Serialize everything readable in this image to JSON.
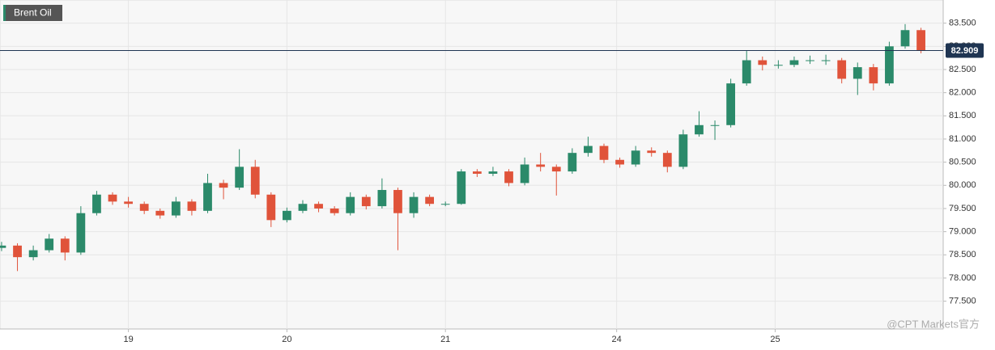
{
  "chart_data": {
    "type": "candlestick",
    "title": "Brent Oil",
    "watermark": "@CPT Markets官方",
    "x": [
      0.2,
      0.3,
      0.4,
      0.5,
      0.6,
      0.7,
      0.8,
      0.9,
      1.0,
      1.1,
      1.2,
      1.3,
      1.4,
      1.5,
      1.6,
      1.7,
      1.8,
      1.9,
      2.0,
      2.1,
      2.2,
      2.3,
      2.4,
      2.5,
      2.6,
      2.7,
      2.8,
      2.9,
      3.0,
      3.1,
      3.2,
      3.3,
      3.4,
      3.5,
      3.6,
      3.7,
      3.8,
      3.9,
      4.0,
      4.1,
      4.2,
      4.3,
      4.4,
      4.5,
      4.6,
      4.7,
      4.8,
      4.9,
      5.0,
      5.1,
      5.2,
      5.3,
      5.4,
      5.5,
      5.6,
      5.7,
      5.8,
      5.9,
      6.0
    ],
    "open": [
      78.65,
      78.7,
      78.45,
      78.6,
      78.85,
      78.55,
      79.4,
      79.8,
      79.65,
      79.6,
      79.45,
      79.35,
      79.65,
      79.45,
      80.05,
      79.95,
      80.4,
      79.8,
      79.25,
      79.45,
      79.6,
      79.5,
      79.4,
      79.75,
      79.55,
      79.9,
      79.4,
      79.75,
      79.6,
      79.6,
      80.3,
      80.25,
      80.3,
      80.05,
      80.45,
      80.4,
      80.3,
      80.7,
      80.85,
      80.55,
      80.45,
      80.75,
      80.7,
      80.4,
      81.1,
      81.3,
      81.3,
      82.2,
      82.7,
      82.6,
      82.6,
      82.7,
      82.7,
      82.7,
      82.3,
      82.55,
      82.2,
      83.0,
      83.35
    ],
    "high": [
      78.78,
      78.75,
      78.7,
      78.95,
      78.9,
      79.55,
      79.88,
      79.85,
      79.75,
      79.65,
      79.5,
      79.75,
      79.7,
      80.25,
      80.12,
      80.78,
      80.55,
      79.85,
      79.52,
      79.68,
      79.65,
      79.55,
      79.85,
      79.8,
      80.15,
      79.95,
      79.85,
      79.8,
      79.65,
      80.35,
      80.35,
      80.4,
      80.35,
      80.6,
      80.7,
      80.45,
      80.8,
      81.05,
      80.9,
      80.6,
      80.85,
      80.82,
      80.75,
      81.2,
      81.6,
      81.4,
      82.3,
      82.9,
      82.78,
      82.7,
      82.78,
      82.8,
      82.82,
      82.75,
      82.65,
      82.62,
      83.1,
      83.48,
      83.4
    ],
    "low": [
      78.58,
      78.15,
      78.38,
      78.55,
      78.38,
      78.5,
      79.35,
      79.58,
      79.52,
      79.38,
      79.28,
      79.3,
      79.35,
      79.4,
      79.7,
      79.9,
      79.72,
      79.1,
      79.2,
      79.4,
      79.42,
      79.35,
      79.35,
      79.48,
      79.5,
      78.6,
      79.3,
      79.55,
      79.55,
      79.58,
      80.18,
      80.2,
      79.98,
      80.0,
      80.3,
      79.78,
      80.25,
      80.62,
      80.48,
      80.38,
      80.4,
      80.62,
      80.28,
      80.35,
      81.05,
      80.98,
      81.25,
      82.15,
      82.48,
      82.52,
      82.55,
      82.62,
      82.6,
      82.2,
      81.95,
      82.05,
      82.15,
      82.95,
      82.85
    ],
    "close": [
      78.7,
      78.45,
      78.6,
      78.85,
      78.55,
      79.4,
      79.8,
      79.65,
      79.6,
      79.45,
      79.35,
      79.65,
      79.45,
      80.05,
      79.95,
      80.4,
      79.8,
      79.25,
      79.45,
      79.6,
      79.5,
      79.4,
      79.75,
      79.55,
      79.9,
      79.4,
      79.75,
      79.6,
      79.6,
      80.3,
      80.25,
      80.3,
      80.05,
      80.45,
      80.4,
      80.3,
      80.7,
      80.85,
      80.55,
      80.45,
      80.75,
      80.7,
      80.4,
      81.1,
      81.3,
      81.3,
      82.2,
      82.7,
      82.6,
      82.6,
      82.7,
      82.7,
      82.7,
      82.3,
      82.55,
      82.2,
      83.0,
      83.35,
      82.909
    ],
    "up_color": "#2b8a6a",
    "down_color": "#e0533a",
    "last_price": {
      "value": 82.909,
      "label": "82.909"
    },
    "xlim": [
      0.19,
      6.14
    ],
    "ylim": [
      76.9,
      84.0
    ],
    "xticks": [
      {
        "value": 1,
        "label": "19"
      },
      {
        "value": 2,
        "label": "20"
      },
      {
        "value": 3,
        "label": "21"
      },
      {
        "value": 4.08,
        "label": "24"
      },
      {
        "value": 5.08,
        "label": "25"
      }
    ],
    "yticks": [
      {
        "value": 77.5,
        "label": "77.500"
      },
      {
        "value": 78,
        "label": "78.000"
      },
      {
        "value": 78.5,
        "label": "78.500"
      },
      {
        "value": 79,
        "label": "79.000"
      },
      {
        "value": 79.5,
        "label": "79.500"
      },
      {
        "value": 80,
        "label": "80.000"
      },
      {
        "value": 80.5,
        "label": "80.500"
      },
      {
        "value": 81,
        "label": "81.000"
      },
      {
        "value": 81.5,
        "label": "81.500"
      },
      {
        "value": 82,
        "label": "82.000"
      },
      {
        "value": 82.5,
        "label": "82.500"
      },
      {
        "value": 83,
        "label": "83.000"
      },
      {
        "value": 83.5,
        "label": "83.500"
      }
    ],
    "grid": true
  }
}
